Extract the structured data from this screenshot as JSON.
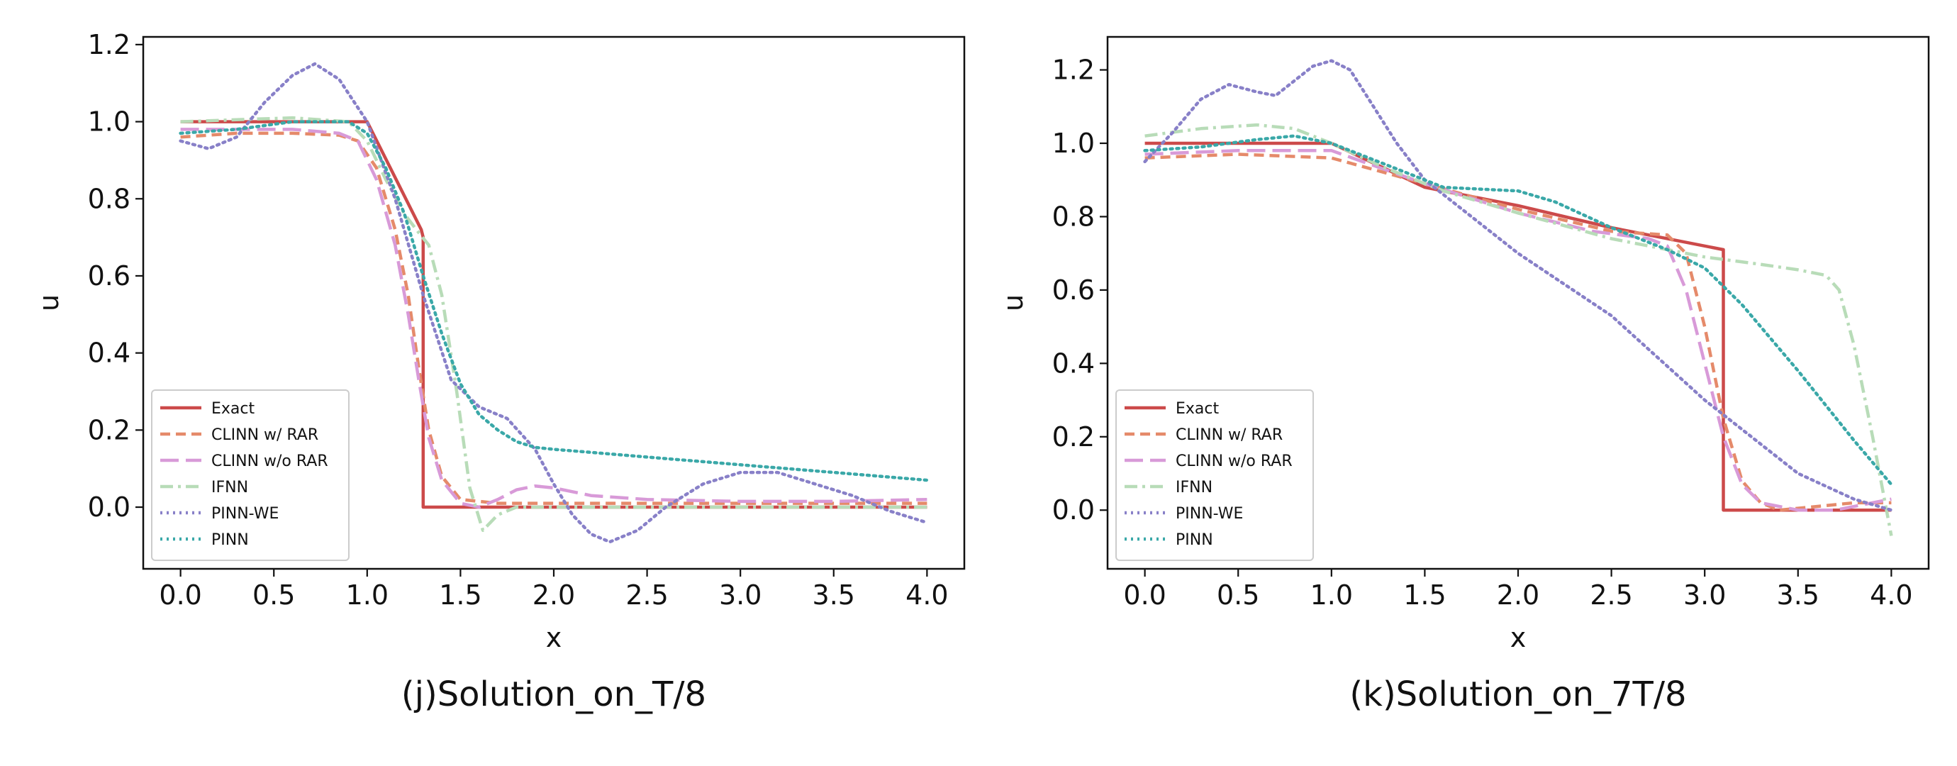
{
  "chart_data": [
    {
      "type": "line",
      "caption": "(j)Solution_on_T/8",
      "xlabel": "x",
      "ylabel": "u",
      "xlim": [
        -0.2,
        4.2
      ],
      "ylim": [
        -0.16,
        1.22
      ],
      "xticks": [
        0.0,
        0.5,
        1.0,
        1.5,
        2.0,
        2.5,
        3.0,
        3.5,
        4.0
      ],
      "xtick_labels": [
        "0.0",
        "0.5",
        "1.0",
        "1.5",
        "2.0",
        "2.5",
        "3.0",
        "3.5",
        "4.0"
      ],
      "yticks": [
        0.0,
        0.2,
        0.4,
        0.6,
        0.8,
        1.0,
        1.2
      ],
      "ytick_labels": [
        "0.0",
        "0.2",
        "0.4",
        "0.6",
        "0.8",
        "1.0",
        "1.2"
      ],
      "legend_position": "lower-left",
      "series": [
        {
          "name": "Exact",
          "color": "#cc4a4a",
          "dash": "solid",
          "x": [
            0.0,
            1.0,
            1.29,
            1.3,
            1.3,
            4.0
          ],
          "y": [
            1.0,
            1.0,
            0.72,
            0.7,
            0.0,
            0.0
          ]
        },
        {
          "name": "CLINN w/ RAR",
          "color": "#e58a6a",
          "dash": "dashed",
          "x": [
            0.0,
            0.3,
            0.6,
            0.85,
            0.95,
            1.05,
            1.15,
            1.22,
            1.28,
            1.33,
            1.4,
            1.5,
            1.7,
            2.0,
            2.5,
            3.0,
            3.5,
            4.0
          ],
          "y": [
            0.96,
            0.97,
            0.97,
            0.965,
            0.95,
            0.88,
            0.72,
            0.55,
            0.35,
            0.2,
            0.08,
            0.02,
            0.01,
            0.01,
            0.01,
            0.01,
            0.01,
            0.01
          ]
        },
        {
          "name": "CLINN w/o RAR",
          "color": "#d89ad8",
          "dash": "longdash",
          "x": [
            0.0,
            0.3,
            0.6,
            0.85,
            0.95,
            1.05,
            1.15,
            1.22,
            1.28,
            1.33,
            1.4,
            1.5,
            1.6,
            1.7,
            1.8,
            1.9,
            2.0,
            2.2,
            2.5,
            3.0,
            3.5,
            4.0
          ],
          "y": [
            0.98,
            0.98,
            0.98,
            0.97,
            0.95,
            0.85,
            0.68,
            0.5,
            0.32,
            0.18,
            0.07,
            0.01,
            0.0,
            0.02,
            0.045,
            0.055,
            0.05,
            0.03,
            0.02,
            0.015,
            0.015,
            0.02
          ]
        },
        {
          "name": "IFNN",
          "color": "#b8dcb8",
          "dash": "dashdot",
          "x": [
            0.0,
            0.3,
            0.6,
            0.9,
            1.0,
            1.1,
            1.2,
            1.28,
            1.33,
            1.4,
            1.48,
            1.55,
            1.62,
            1.7,
            1.8,
            2.0,
            2.5,
            3.0,
            3.5,
            4.0
          ],
          "y": [
            1.0,
            1.005,
            1.01,
            1.0,
            0.95,
            0.85,
            0.76,
            0.71,
            0.68,
            0.55,
            0.3,
            0.05,
            -0.06,
            -0.02,
            0.0,
            0.0,
            0.0,
            0.0,
            0.0,
            0.0
          ]
        },
        {
          "name": "PINN-WE",
          "color": "#8880c8",
          "dash": "dotted",
          "x": [
            0.0,
            0.15,
            0.3,
            0.45,
            0.6,
            0.72,
            0.85,
            1.0,
            1.15,
            1.3,
            1.45,
            1.6,
            1.75,
            1.9,
            2.0,
            2.1,
            2.2,
            2.3,
            2.45,
            2.6,
            2.8,
            3.0,
            3.2,
            3.4,
            3.6,
            3.8,
            4.0
          ],
          "y": [
            0.95,
            0.93,
            0.96,
            1.05,
            1.12,
            1.15,
            1.11,
            1.0,
            0.8,
            0.55,
            0.33,
            0.26,
            0.23,
            0.15,
            0.06,
            -0.02,
            -0.07,
            -0.09,
            -0.06,
            0.0,
            0.06,
            0.09,
            0.09,
            0.06,
            0.03,
            -0.01,
            -0.04
          ]
        },
        {
          "name": "PINN",
          "color": "#3aa8a8",
          "dash": "dotted",
          "x": [
            0.0,
            0.3,
            0.6,
            0.9,
            1.0,
            1.1,
            1.2,
            1.3,
            1.4,
            1.5,
            1.6,
            1.7,
            1.8,
            1.9,
            2.0,
            2.5,
            3.0,
            3.5,
            4.0
          ],
          "y": [
            0.97,
            0.98,
            1.0,
            1.0,
            0.97,
            0.88,
            0.76,
            0.6,
            0.45,
            0.32,
            0.24,
            0.2,
            0.17,
            0.155,
            0.15,
            0.13,
            0.11,
            0.09,
            0.07
          ]
        }
      ],
      "legend": [
        "Exact",
        "CLINN w/ RAR",
        "CLINN w/o RAR",
        "IFNN",
        "PINN-WE",
        "PINN"
      ]
    },
    {
      "type": "line",
      "caption": "(k)Solution_on_7T/8",
      "xlabel": "x",
      "ylabel": "u",
      "xlim": [
        -0.2,
        4.2
      ],
      "ylim": [
        -0.16,
        1.29
      ],
      "xticks": [
        0.0,
        0.5,
        1.0,
        1.5,
        2.0,
        2.5,
        3.0,
        3.5,
        4.0
      ],
      "xtick_labels": [
        "0.0",
        "0.5",
        "1.0",
        "1.5",
        "2.0",
        "2.5",
        "3.0",
        "3.5",
        "4.0"
      ],
      "yticks": [
        0.0,
        0.2,
        0.4,
        0.6,
        0.8,
        1.0,
        1.2
      ],
      "ytick_labels": [
        "0.0",
        "0.2",
        "0.4",
        "0.6",
        "0.8",
        "1.0",
        "1.2"
      ],
      "legend_position": "lower-left",
      "series": [
        {
          "name": "Exact",
          "color": "#cc4a4a",
          "dash": "solid",
          "x": [
            0.0,
            1.0,
            1.5,
            2.0,
            2.5,
            3.1,
            3.1,
            4.0
          ],
          "y": [
            1.0,
            1.0,
            0.88,
            0.83,
            0.77,
            0.71,
            0.0,
            0.0
          ]
        },
        {
          "name": "CLINN w/ RAR",
          "color": "#e58a6a",
          "dash": "dashed",
          "x": [
            0.0,
            0.5,
            1.0,
            1.5,
            2.0,
            2.5,
            2.8,
            2.9,
            3.0,
            3.1,
            3.2,
            3.3,
            3.4,
            3.6,
            3.8,
            4.0
          ],
          "y": [
            0.96,
            0.97,
            0.96,
            0.89,
            0.82,
            0.76,
            0.75,
            0.7,
            0.5,
            0.25,
            0.08,
            0.02,
            0.0,
            0.01,
            0.02,
            0.02
          ]
        },
        {
          "name": "CLINN w/o RAR",
          "color": "#d89ad8",
          "dash": "longdash",
          "x": [
            0.0,
            0.5,
            1.0,
            1.5,
            2.0,
            2.4,
            2.7,
            2.8,
            2.9,
            3.0,
            3.1,
            3.2,
            3.3,
            3.5,
            3.7,
            4.0
          ],
          "y": [
            0.97,
            0.98,
            0.98,
            0.89,
            0.81,
            0.76,
            0.74,
            0.72,
            0.6,
            0.4,
            0.2,
            0.07,
            0.02,
            0.0,
            0.0,
            0.03
          ]
        },
        {
          "name": "IFNN",
          "color": "#b8dcb8",
          "dash": "dashdot",
          "x": [
            0.0,
            0.3,
            0.6,
            0.8,
            1.0,
            1.3,
            1.6,
            2.0,
            2.5,
            3.0,
            3.3,
            3.5,
            3.65,
            3.72,
            3.8,
            3.9,
            4.0
          ],
          "y": [
            1.02,
            1.04,
            1.05,
            1.04,
            1.0,
            0.93,
            0.87,
            0.81,
            0.74,
            0.69,
            0.67,
            0.655,
            0.64,
            0.6,
            0.45,
            0.2,
            -0.07
          ]
        },
        {
          "name": "PINN-WE",
          "color": "#8880c8",
          "dash": "dotted",
          "x": [
            0.0,
            0.15,
            0.3,
            0.45,
            0.6,
            0.7,
            0.8,
            0.9,
            1.0,
            1.1,
            1.2,
            1.35,
            1.5,
            1.8,
            2.0,
            2.5,
            3.0,
            3.5,
            3.8,
            4.0
          ],
          "y": [
            0.95,
            1.03,
            1.12,
            1.16,
            1.14,
            1.13,
            1.17,
            1.21,
            1.225,
            1.2,
            1.12,
            1.0,
            0.9,
            0.78,
            0.7,
            0.53,
            0.3,
            0.1,
            0.03,
            0.0
          ]
        },
        {
          "name": "PINN",
          "color": "#3aa8a8",
          "dash": "dotted",
          "x": [
            0.0,
            0.3,
            0.6,
            0.8,
            1.0,
            1.3,
            1.6,
            2.0,
            2.2,
            2.5,
            2.8,
            3.0,
            3.2,
            3.5,
            3.8,
            4.0
          ],
          "y": [
            0.98,
            0.99,
            1.01,
            1.02,
            1.0,
            0.94,
            0.88,
            0.87,
            0.84,
            0.77,
            0.71,
            0.66,
            0.56,
            0.38,
            0.19,
            0.07
          ]
        }
      ],
      "legend": [
        "Exact",
        "CLINN w/ RAR",
        "CLINN w/o RAR",
        "IFNN",
        "PINN-WE",
        "PINN"
      ]
    }
  ]
}
